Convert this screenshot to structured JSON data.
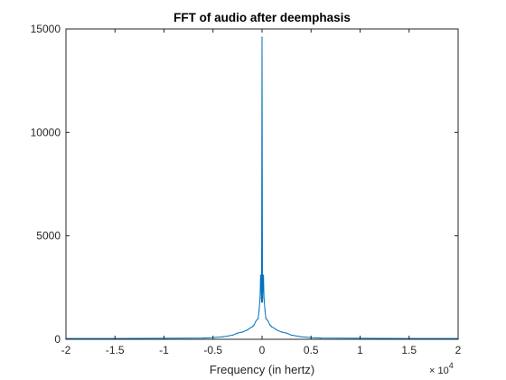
{
  "chart_data": {
    "type": "line",
    "title": "FFT of audio after deemphasis",
    "xlabel": "Frequency (in hertz)",
    "ylabel": "",
    "x_exponent_label": "× 10",
    "x_exponent_power": "4",
    "xlim": [
      -20000,
      20000
    ],
    "ylim": [
      0,
      15000
    ],
    "x_ticks": [
      -20000,
      -15000,
      -10000,
      -5000,
      0,
      5000,
      10000,
      15000,
      20000
    ],
    "x_tick_labels": [
      "-2",
      "-1.5",
      "-1",
      "-0.5",
      "0",
      "0.5",
      "1",
      "1.5",
      "2"
    ],
    "y_ticks": [
      0,
      5000,
      10000,
      15000
    ],
    "y_tick_labels": [
      "0",
      "5000",
      "10000",
      "15000"
    ],
    "grid": false,
    "series": [
      {
        "color": "#0072BD",
        "x": [
          -20000,
          -15000,
          -10000,
          -6000,
          -5000,
          -4000,
          -3000,
          -2500,
          -2000,
          -1500,
          -1200,
          -1000,
          -800,
          -600,
          -400,
          -300,
          -200,
          -150,
          -100,
          -50,
          0,
          50,
          100,
          150,
          200,
          300,
          400,
          600,
          800,
          1000,
          1200,
          1500,
          2000,
          2500,
          3000,
          4000,
          5000,
          6000,
          10000,
          15000,
          20000
        ],
        "y": [
          40,
          40,
          50,
          60,
          80,
          120,
          200,
          300,
          350,
          450,
          550,
          600,
          700,
          900,
          1000,
          1400,
          2000,
          3100,
          2500,
          1800,
          14600,
          1800,
          2500,
          3100,
          2000,
          1400,
          1000,
          900,
          700,
          600,
          550,
          450,
          350,
          300,
          200,
          120,
          80,
          60,
          50,
          40,
          40
        ]
      }
    ]
  }
}
